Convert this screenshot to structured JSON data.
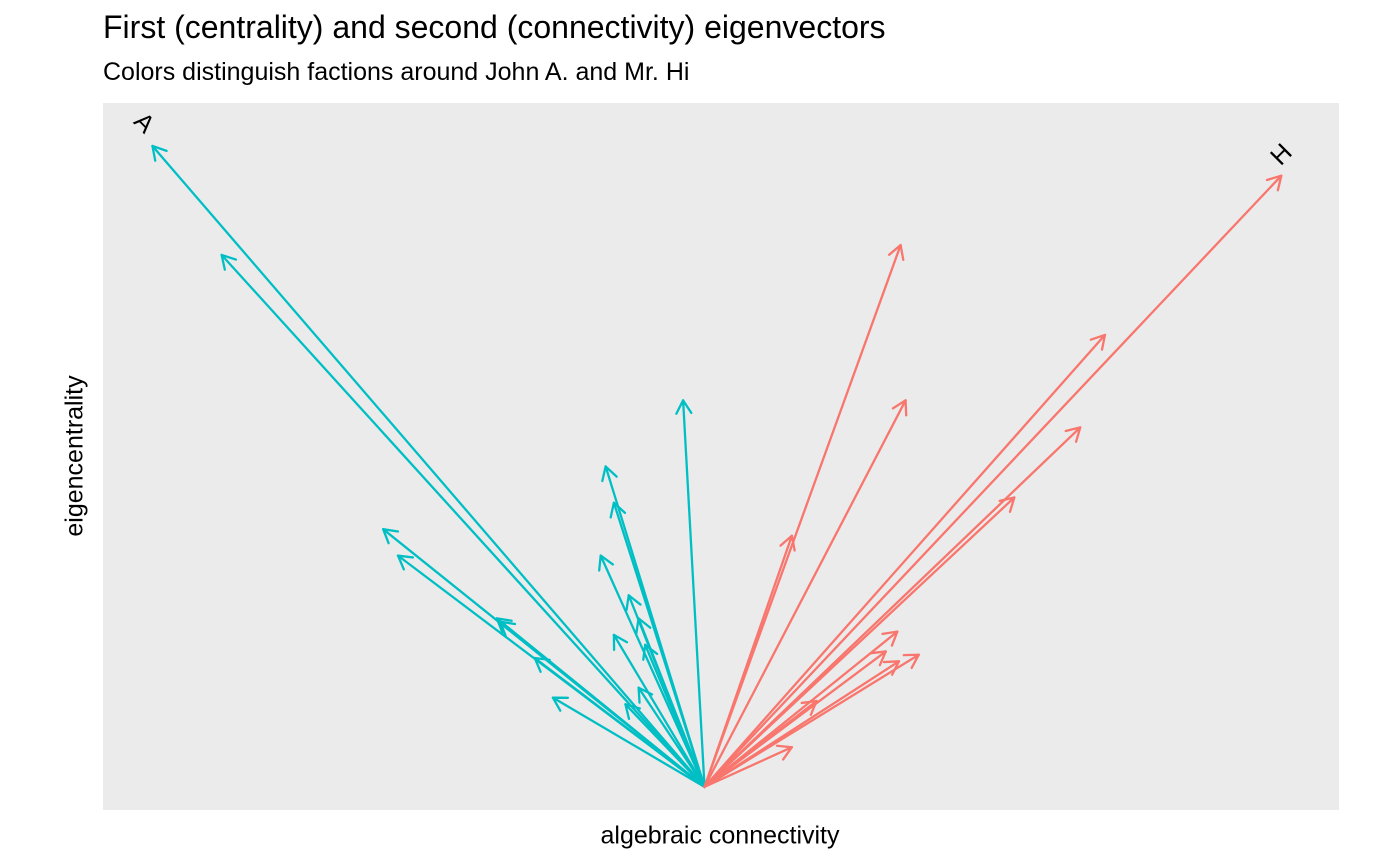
{
  "chart_data": {
    "type": "vector",
    "title": "First (centrality) and second (connectivity) eigenvectors",
    "subtitle": "Colors distinguish factions around John A. and Mr. Hi",
    "xlabel": "algebraic connectivity",
    "ylabel": "eigencentrality",
    "grid": false,
    "xlim": [
      -0.365,
      0.385
    ],
    "ylim": [
      -0.035,
      1.035
    ],
    "origin": [
      0,
      0
    ],
    "colors": {
      "A": "#00BFC4",
      "H": "#F8766D"
    },
    "labels": [
      {
        "text": "A",
        "x": -0.34,
        "y": 1.005,
        "rotation": 45
      },
      {
        "text": "H",
        "x": 0.35,
        "y": 0.957,
        "rotation": -45
      }
    ],
    "series": [
      {
        "faction": "A",
        "vectors": [
          {
            "x": -0.335,
            "y": 0.97
          },
          {
            "x": -0.293,
            "y": 0.805
          },
          {
            "x": -0.195,
            "y": 0.39
          },
          {
            "x": -0.186,
            "y": 0.35
          },
          {
            "x": -0.126,
            "y": 0.255
          },
          {
            "x": -0.124,
            "y": 0.25
          },
          {
            "x": -0.103,
            "y": 0.195
          },
          {
            "x": -0.092,
            "y": 0.135
          },
          {
            "x": -0.063,
            "y": 0.35
          },
          {
            "x": -0.055,
            "y": 0.23
          },
          {
            "x": -0.055,
            "y": 0.43
          },
          {
            "x": -0.06,
            "y": 0.485
          },
          {
            "x": -0.046,
            "y": 0.29
          },
          {
            "x": -0.036,
            "y": 0.215
          },
          {
            "x": -0.04,
            "y": 0.15
          },
          {
            "x": -0.048,
            "y": 0.125
          },
          {
            "x": -0.04,
            "y": 0.255
          },
          {
            "x": -0.013,
            "y": 0.585
          }
        ]
      },
      {
        "faction": "H",
        "vectors": [
          {
            "x": 0.35,
            "y": 0.925
          },
          {
            "x": 0.243,
            "y": 0.684
          },
          {
            "x": 0.119,
            "y": 0.82
          },
          {
            "x": 0.122,
            "y": 0.585
          },
          {
            "x": 0.228,
            "y": 0.544
          },
          {
            "x": 0.188,
            "y": 0.438
          },
          {
            "x": 0.053,
            "y": 0.38
          },
          {
            "x": 0.117,
            "y": 0.235
          },
          {
            "x": 0.11,
            "y": 0.205
          },
          {
            "x": 0.13,
            "y": 0.2
          },
          {
            "x": 0.118,
            "y": 0.19
          },
          {
            "x": 0.068,
            "y": 0.13
          },
          {
            "x": 0.053,
            "y": 0.06
          }
        ]
      }
    ]
  }
}
